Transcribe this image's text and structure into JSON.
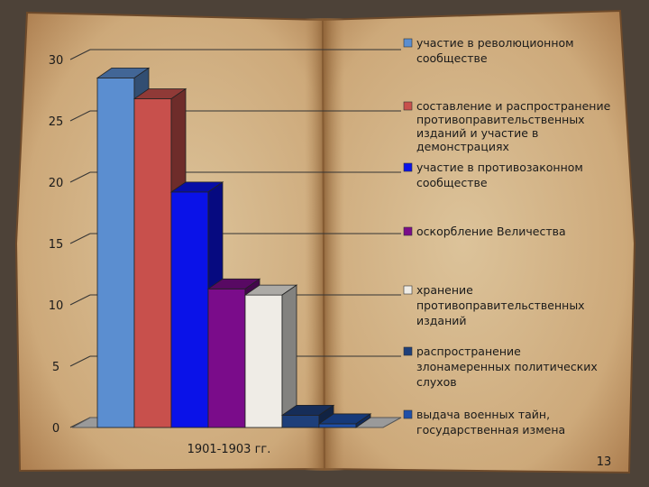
{
  "chart_data": {
    "type": "bar",
    "categories": [
      "1901-1903 гг."
    ],
    "ylim": [
      0,
      30
    ],
    "yticks": [
      0,
      5,
      10,
      15,
      20,
      25,
      30
    ],
    "legend_position": "right",
    "series": [
      {
        "name": "участие в революционном сообществе",
        "values": [
          28.5
        ],
        "color": "#5b8ed0"
      },
      {
        "name": "составление и распространение противоправительственных изданий и участие в демонстрациях",
        "values": [
          26.8
        ],
        "color": "#c8504c"
      },
      {
        "name": "участие в противозаконном сообществе",
        "values": [
          19.2
        ],
        "color": "#0a12e8"
      },
      {
        "name": "оскорбление Величества",
        "values": [
          11.3
        ],
        "color": "#7a0c8a"
      },
      {
        "name": "хранение противоправительственных изданий",
        "values": [
          10.8
        ],
        "color": "#efece6"
      },
      {
        "name": "распространение злонамеренных политических слухов",
        "values": [
          1.0
        ],
        "color": "#1e3f7a"
      },
      {
        "name": "выдача военных тайн, государственная измена",
        "values": [
          0.3
        ],
        "color": "#1f4fa8"
      }
    ]
  },
  "page_number": "13"
}
